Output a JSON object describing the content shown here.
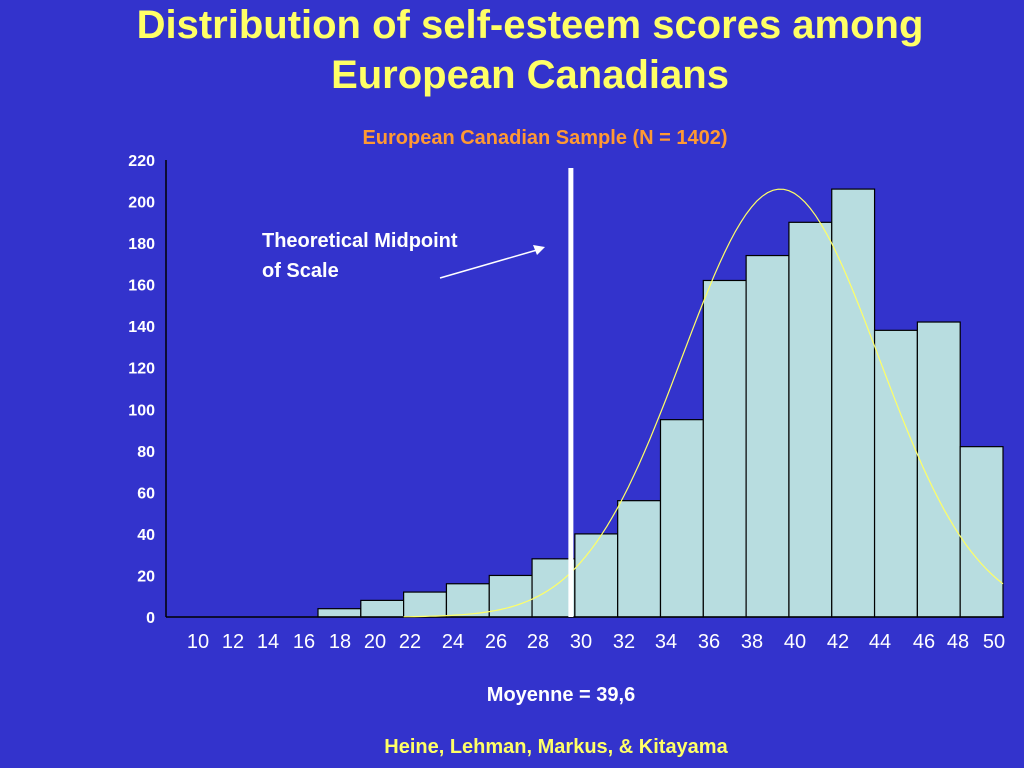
{
  "title_lines": [
    "Distribution of self-esteem scores among",
    "European Canadians"
  ],
  "subtitle": "European Canadian Sample (N = 1402)",
  "annotation": {
    "lines": [
      "Theoretical Midpoint",
      "of Scale"
    ]
  },
  "mean_label": "Moyenne = 39,6",
  "credit": "Heine, Lehman, Markus, & Kitayama",
  "colors": {
    "background": "#3333cc",
    "title": "#ffff66",
    "subtitle": "#ff9933",
    "bar_fill": "#b8dde0",
    "curve": "#ffff66",
    "midpoint_line": "#ffffff"
  },
  "chart_data": {
    "type": "bar",
    "x_tick_labels": [
      "10",
      "12",
      "14",
      "16",
      "18",
      "20",
      "22",
      "24",
      "26",
      "28",
      "30",
      "32",
      "34",
      "36",
      "38",
      "40",
      "42",
      "44",
      "46",
      "48",
      "50"
    ],
    "y_tick_labels": [
      "0",
      "20",
      "40",
      "60",
      "80",
      "100",
      "120",
      "140",
      "160",
      "180",
      "200",
      "220"
    ],
    "ylim": [
      0,
      220
    ],
    "bars": [
      {
        "x0": 18,
        "x1": 20,
        "value": 4
      },
      {
        "x0": 20,
        "x1": 22,
        "value": 8
      },
      {
        "x0": 22,
        "x1": 24,
        "value": 12
      },
      {
        "x0": 24,
        "x1": 26,
        "value": 16
      },
      {
        "x0": 26,
        "x1": 28,
        "value": 20
      },
      {
        "x0": 28,
        "x1": 30,
        "value": 28
      },
      {
        "x0": 30,
        "x1": 32,
        "value": 40
      },
      {
        "x0": 32,
        "x1": 34,
        "value": 56
      },
      {
        "x0": 34,
        "x1": 36,
        "value": 95
      },
      {
        "x0": 36,
        "x1": 38,
        "value": 162
      },
      {
        "x0": 38,
        "x1": 40,
        "value": 174
      },
      {
        "x0": 40,
        "x1": 42,
        "value": 190
      },
      {
        "x0": 42,
        "x1": 44,
        "value": 206
      },
      {
        "x0": 44,
        "x1": 46,
        "value": 138
      },
      {
        "x0": 46,
        "x1": 48,
        "value": 142
      },
      {
        "x0": 48,
        "x1": 50,
        "value": 82
      }
    ],
    "midpoint_x": 30,
    "normal_curve": {
      "mean": 39.6,
      "peak": 206,
      "range": [
        22,
        50
      ]
    },
    "grid": false
  }
}
